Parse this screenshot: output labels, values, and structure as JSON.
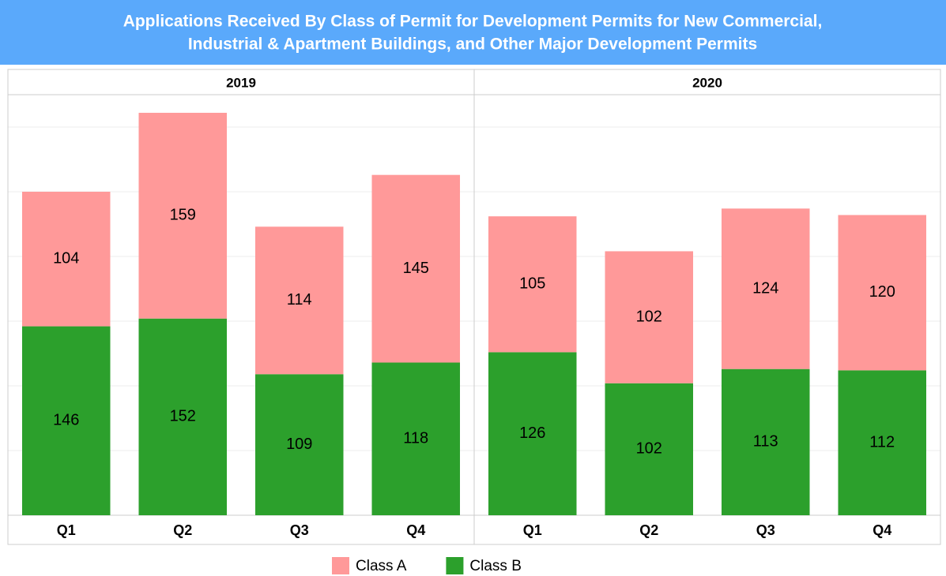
{
  "chart_data": {
    "type": "stacked-bar",
    "title": [
      "Applications Received By Class of Permit for Development Permits for New Commercial,",
      "Industrial & Apartment Buildings, and Other Major Development Permits"
    ],
    "groups": [
      "2019",
      "2020"
    ],
    "categories": [
      "Q1",
      "Q2",
      "Q3",
      "Q4",
      "Q1",
      "Q2",
      "Q3",
      "Q4"
    ],
    "series": [
      {
        "name": "Class B",
        "color": "#2ca02c",
        "values": [
          146,
          152,
          109,
          118,
          126,
          102,
          113,
          112
        ]
      },
      {
        "name": "Class A",
        "color": "#ff9999",
        "values": [
          104,
          159,
          114,
          145,
          105,
          102,
          124,
          120
        ]
      }
    ],
    "legend_order": [
      1,
      0
    ],
    "ylim": [
      0,
      325
    ],
    "yticks": [
      0,
      50,
      100,
      150,
      200,
      250,
      300
    ],
    "grid": true
  }
}
